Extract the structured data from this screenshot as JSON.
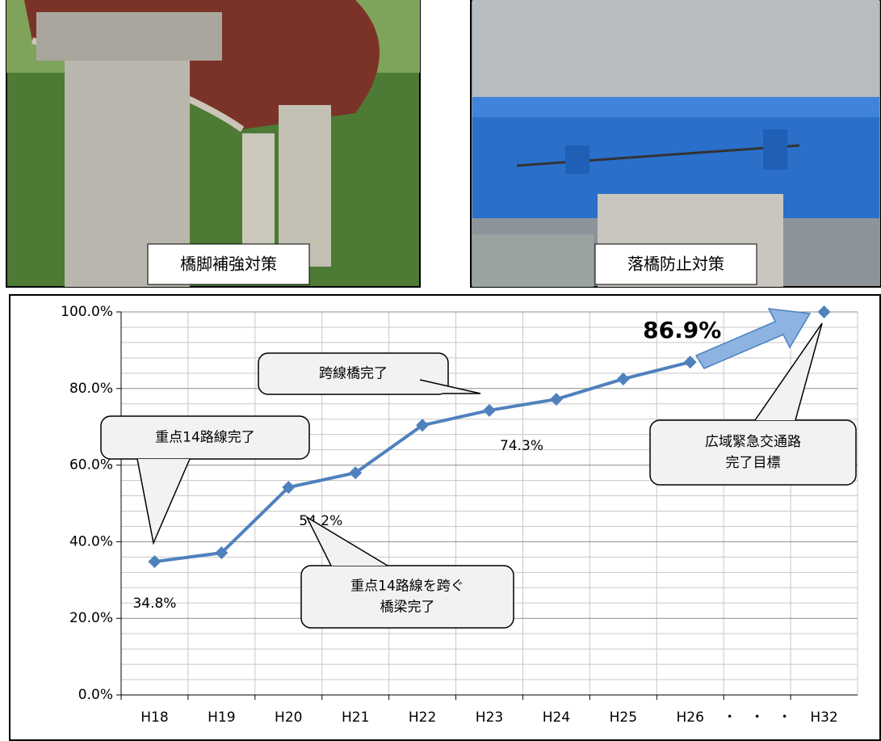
{
  "photos": [
    {
      "caption": "橋脚補強対策"
    },
    {
      "caption": "落橋防止対策"
    }
  ],
  "chart_data": {
    "type": "line",
    "categories": [
      "H18",
      "H19",
      "H20",
      "H21",
      "H22",
      "H23",
      "H24",
      "H25",
      "H26",
      "・　・　・",
      "H32"
    ],
    "series": [
      {
        "color": "#4f81bd",
        "values": [
          34.8,
          37.1,
          54.2,
          58.0,
          70.4,
          74.3,
          77.2,
          82.5,
          86.9,
          null,
          null
        ],
        "value_labels": [
          "34.8%",
          null,
          "54.2%",
          null,
          null,
          "74.3%",
          null,
          null,
          "86.9%",
          null,
          null
        ]
      },
      {
        "color": "#4f81bd",
        "style": "dashed",
        "values": [
          null,
          null,
          null,
          null,
          null,
          null,
          null,
          null,
          86.9,
          null,
          100
        ]
      }
    ],
    "ylim": [
      0,
      100
    ],
    "yticks": [
      {
        "value": 0,
        "label": "0.0%"
      },
      {
        "value": 20,
        "label": "20.0%"
      },
      {
        "value": 40,
        "label": "40.0%"
      },
      {
        "value": 60,
        "label": "60.0%"
      },
      {
        "value": 80,
        "label": "80.0%"
      },
      {
        "value": 100,
        "label": "100.0%"
      }
    ],
    "minor_yticks": [
      4,
      8,
      12,
      16,
      24,
      28,
      32,
      36,
      44,
      48,
      52,
      56,
      64,
      68,
      72,
      76,
      84,
      88,
      92,
      96
    ],
    "grid": true,
    "annotations": [
      {
        "index": 0,
        "lines": [
          "重点14路線完了"
        ]
      },
      {
        "index": 5,
        "lines": [
          "跨線橋完了"
        ]
      },
      {
        "index": 2,
        "lines": [
          "重点14路線を跨ぐ",
          "橋梁完了"
        ]
      },
      {
        "index": 10,
        "lines": [
          "広域緊急交通路",
          "完了目標"
        ]
      }
    ]
  }
}
